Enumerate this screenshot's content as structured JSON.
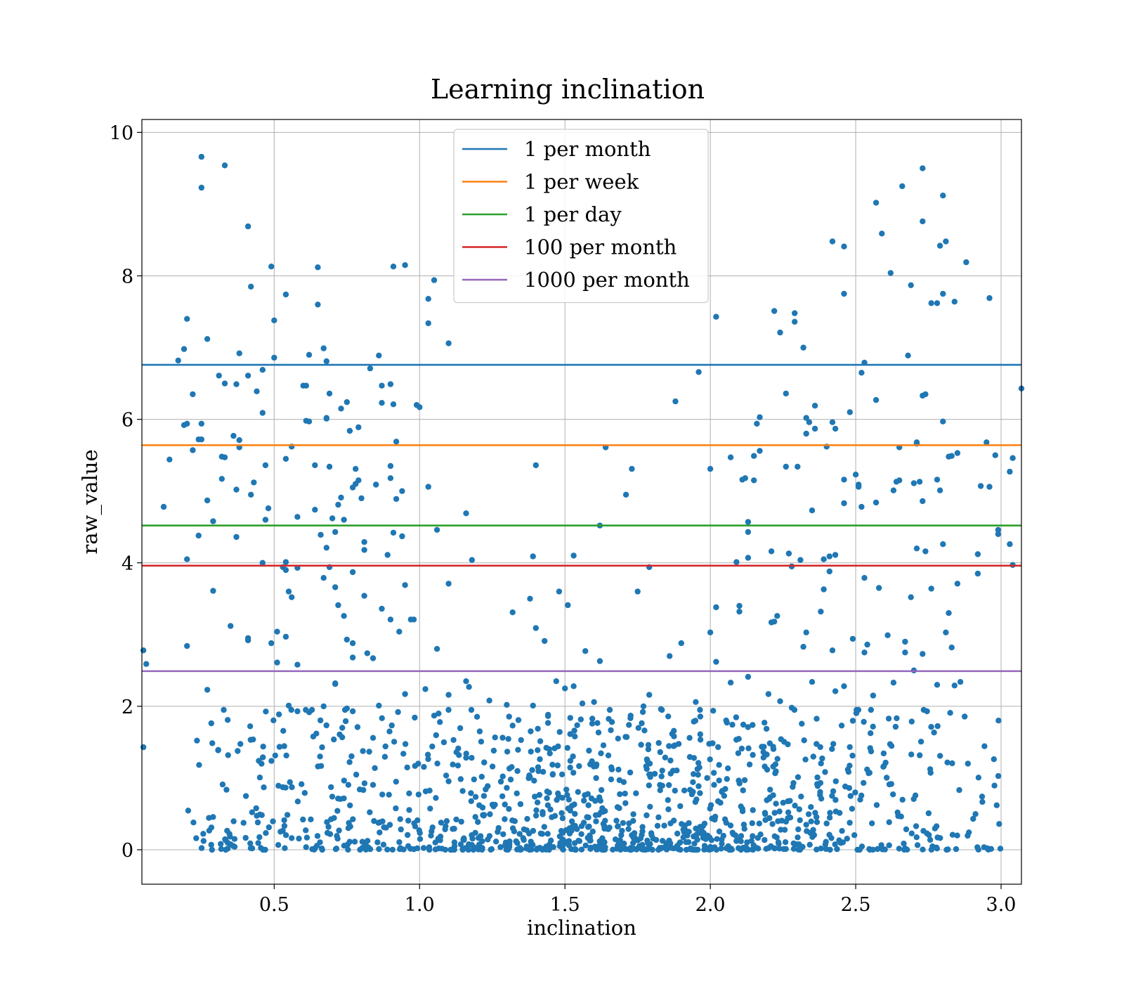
{
  "chart_data": {
    "type": "scatter",
    "title": "Learning inclination",
    "xlabel": "inclination",
    "ylabel": "raw_value",
    "xlim": [
      0.045,
      3.07
    ],
    "ylim": [
      -0.48,
      10.18
    ],
    "xticks": [
      {
        "value": 0.5,
        "label": "0.5"
      },
      {
        "value": 1.0,
        "label": "1.0"
      },
      {
        "value": 1.5,
        "label": "1.5"
      },
      {
        "value": 2.0,
        "label": "2.0"
      },
      {
        "value": 2.5,
        "label": "2.5"
      },
      {
        "value": 3.0,
        "label": "3.0"
      }
    ],
    "yticks": [
      {
        "value": 0,
        "label": "0"
      },
      {
        "value": 2,
        "label": "2"
      },
      {
        "value": 4,
        "label": "4"
      },
      {
        "value": 6,
        "label": "6"
      },
      {
        "value": 8,
        "label": "8"
      },
      {
        "value": 10,
        "label": "10"
      }
    ],
    "grid": true,
    "legend_position": "upper-center",
    "point_color": "#1f77b4",
    "hlines": [
      {
        "name": "1 per month",
        "y": 6.76,
        "color": "#1f77b4"
      },
      {
        "name": "1 per week",
        "y": 5.64,
        "color": "#ff7f0e"
      },
      {
        "name": "1 per day",
        "y": 4.52,
        "color": "#2ca02c"
      },
      {
        "name": "100 per month",
        "y": 3.96,
        "color": "#d62728"
      },
      {
        "name": "1000 per month",
        "y": 2.49,
        "color": "#9467bd"
      }
    ],
    "points": [
      [
        0.05,
        2.78
      ],
      [
        0.06,
        2.59
      ],
      [
        0.05,
        1.43
      ],
      [
        0.12,
        4.78
      ],
      [
        0.14,
        5.44
      ],
      [
        0.17,
        6.82
      ],
      [
        0.2,
        7.4
      ],
      [
        0.19,
        6.98
      ],
      [
        0.19,
        5.92
      ],
      [
        0.2,
        5.94
      ],
      [
        0.22,
        6.35
      ],
      [
        0.22,
        5.57
      ],
      [
        0.24,
        5.72
      ],
      [
        0.25,
        5.94
      ],
      [
        0.25,
        5.72
      ],
      [
        0.25,
        9.66
      ],
      [
        0.25,
        9.23
      ],
      [
        0.27,
        7.12
      ],
      [
        0.27,
        4.87
      ],
      [
        0.24,
        4.38
      ],
      [
        0.2,
        4.05
      ],
      [
        0.2,
        2.84
      ],
      [
        0.27,
        2.23
      ],
      [
        0.29,
        4.58
      ],
      [
        0.29,
        3.61
      ],
      [
        0.31,
        6.61
      ],
      [
        0.32,
        5.48
      ],
      [
        0.33,
        5.47
      ],
      [
        0.33,
        6.5
      ],
      [
        0.32,
        5.17
      ],
      [
        0.33,
        9.54
      ],
      [
        0.36,
        5.77
      ],
      [
        0.37,
        6.49
      ],
      [
        0.38,
        6.92
      ],
      [
        0.38,
        5.71
      ],
      [
        0.38,
        5.61
      ],
      [
        0.37,
        5.02
      ],
      [
        0.37,
        4.36
      ],
      [
        0.35,
        3.12
      ],
      [
        0.34,
        1.81
      ],
      [
        0.41,
        8.69
      ],
      [
        0.42,
        7.85
      ],
      [
        0.41,
        6.61
      ],
      [
        0.44,
        6.39
      ],
      [
        0.46,
        6.69
      ],
      [
        0.46,
        6.09
      ],
      [
        0.43,
        5.12
      ],
      [
        0.42,
        4.95
      ],
      [
        0.47,
        5.36
      ],
      [
        0.47,
        4.6
      ],
      [
        0.48,
        4.76
      ],
      [
        0.49,
        8.13
      ],
      [
        0.5,
        7.38
      ],
      [
        0.5,
        6.86
      ],
      [
        0.46,
        4.0
      ],
      [
        0.41,
        2.95
      ],
      [
        0.41,
        2.92
      ],
      [
        0.49,
        2.88
      ],
      [
        0.51,
        3.04
      ],
      [
        0.51,
        2.61
      ],
      [
        0.54,
        7.74
      ],
      [
        0.54,
        5.45
      ],
      [
        0.56,
        5.62
      ],
      [
        0.53,
        3.94
      ],
      [
        0.54,
        4.01
      ],
      [
        0.54,
        3.9
      ],
      [
        0.55,
        3.6
      ],
      [
        0.56,
        3.52
      ],
      [
        0.54,
        2.97
      ],
      [
        0.58,
        2.58
      ],
      [
        0.58,
        4.64
      ],
      [
        0.58,
        3.93
      ],
      [
        0.6,
        6.47
      ],
      [
        0.61,
        6.47
      ],
      [
        0.61,
        5.98
      ],
      [
        0.62,
        6.9
      ],
      [
        0.62,
        5.97
      ],
      [
        0.64,
        5.36
      ],
      [
        0.64,
        4.74
      ],
      [
        0.65,
        8.12
      ],
      [
        0.65,
        7.6
      ],
      [
        0.67,
        6.99
      ],
      [
        0.68,
        6.81
      ],
      [
        0.68,
        6.02
      ],
      [
        0.68,
        6.01
      ],
      [
        0.69,
        6.36
      ],
      [
        0.69,
        5.34
      ],
      [
        0.66,
        4.39
      ],
      [
        0.68,
        4.21
      ],
      [
        0.67,
        3.79
      ],
      [
        0.69,
        3.94
      ],
      [
        0.7,
        4.62
      ],
      [
        0.71,
        4.43
      ],
      [
        0.71,
        3.66
      ],
      [
        0.72,
        4.81
      ],
      [
        0.73,
        4.91
      ],
      [
        0.74,
        4.6
      ],
      [
        0.72,
        3.41
      ],
      [
        0.74,
        3.26
      ],
      [
        0.75,
        2.93
      ],
      [
        0.73,
        6.15
      ],
      [
        0.75,
        6.24
      ],
      [
        0.76,
        5.84
      ],
      [
        0.77,
        5.05
      ],
      [
        0.78,
        5.31
      ],
      [
        0.79,
        5.89
      ],
      [
        0.79,
        5.15
      ],
      [
        0.78,
        5.1
      ],
      [
        0.8,
        4.9
      ],
      [
        0.77,
        3.87
      ],
      [
        0.77,
        2.68
      ],
      [
        0.77,
        2.88
      ],
      [
        0.81,
        4.29
      ],
      [
        0.81,
        4.18
      ],
      [
        0.81,
        3.54
      ],
      [
        0.82,
        2.74
      ],
      [
        0.84,
        2.67
      ],
      [
        0.71,
        2.31
      ],
      [
        0.83,
        6.71
      ],
      [
        0.85,
        5.09
      ],
      [
        0.86,
        6.89
      ],
      [
        0.87,
        6.47
      ],
      [
        0.87,
        6.23
      ],
      [
        0.87,
        3.36
      ],
      [
        0.89,
        4.11
      ],
      [
        0.9,
        6.49
      ],
      [
        0.91,
        6.21
      ],
      [
        0.9,
        5.35
      ],
      [
        0.9,
        5.18
      ],
      [
        0.92,
        5.69
      ],
      [
        0.91,
        8.13
      ],
      [
        0.95,
        8.15
      ],
      [
        0.92,
        4.89
      ],
      [
        0.94,
        5.0
      ],
      [
        0.91,
        4.42
      ],
      [
        0.94,
        4.37
      ],
      [
        0.9,
        3.21
      ],
      [
        0.93,
        3.04
      ],
      [
        0.95,
        3.69
      ],
      [
        0.97,
        3.21
      ],
      [
        0.98,
        3.21
      ],
      [
        0.99,
        6.2
      ],
      [
        1.0,
        6.17
      ],
      [
        1.03,
        7.68
      ],
      [
        1.03,
        7.34
      ],
      [
        1.05,
        7.94
      ],
      [
        1.03,
        5.06
      ],
      [
        1.06,
        4.46
      ],
      [
        1.1,
        7.06
      ],
      [
        1.1,
        3.71
      ],
      [
        1.06,
        2.8
      ],
      [
        1.16,
        4.69
      ],
      [
        1.18,
        4.04
      ],
      [
        1.32,
        3.31
      ],
      [
        1.38,
        3.5
      ],
      [
        1.39,
        4.09
      ],
      [
        1.4,
        5.36
      ],
      [
        1.4,
        3.09
      ],
      [
        1.43,
        2.91
      ],
      [
        1.48,
        3.6
      ],
      [
        1.53,
        4.1
      ],
      [
        1.51,
        3.41
      ],
      [
        1.57,
        2.77
      ],
      [
        1.62,
        2.63
      ],
      [
        1.62,
        4.52
      ],
      [
        1.64,
        5.61
      ],
      [
        1.71,
        4.95
      ],
      [
        1.73,
        5.31
      ],
      [
        1.75,
        3.6
      ],
      [
        1.79,
        3.94
      ],
      [
        1.88,
        6.25
      ],
      [
        1.86,
        2.7
      ],
      [
        1.9,
        2.88
      ],
      [
        1.96,
        6.66
      ],
      [
        2.0,
        3.03
      ],
      [
        2.0,
        5.31
      ],
      [
        2.02,
        7.43
      ],
      [
        2.02,
        2.62
      ],
      [
        2.02,
        3.38
      ],
      [
        2.07,
        5.47
      ],
      [
        2.09,
        4.01
      ],
      [
        2.11,
        5.16
      ],
      [
        2.12,
        5.18
      ],
      [
        2.13,
        4.57
      ],
      [
        2.13,
        4.43
      ],
      [
        2.13,
        4.07
      ],
      [
        2.1,
        3.4
      ],
      [
        2.1,
        3.32
      ],
      [
        2.15,
        5.15
      ],
      [
        2.15,
        5.49
      ],
      [
        2.16,
        5.94
      ],
      [
        2.17,
        6.03
      ],
      [
        2.17,
        5.56
      ],
      [
        2.21,
        4.16
      ],
      [
        2.21,
        3.17
      ],
      [
        2.22,
        3.18
      ],
      [
        2.23,
        3.26
      ],
      [
        2.22,
        7.51
      ],
      [
        2.24,
        7.21
      ],
      [
        2.26,
        6.36
      ],
      [
        2.26,
        5.34
      ],
      [
        2.27,
        4.13
      ],
      [
        2.28,
        3.95
      ],
      [
        2.29,
        7.48
      ],
      [
        2.29,
        7.36
      ],
      [
        2.3,
        5.34
      ],
      [
        2.31,
        4.04
      ],
      [
        2.32,
        7.0
      ],
      [
        2.33,
        6.02
      ],
      [
        2.33,
        5.8
      ],
      [
        2.34,
        5.96
      ],
      [
        2.35,
        4.73
      ],
      [
        2.36,
        5.87
      ],
      [
        2.36,
        6.19
      ],
      [
        2.32,
        2.83
      ],
      [
        2.33,
        3.03
      ],
      [
        2.38,
        3.32
      ],
      [
        2.39,
        4.05
      ],
      [
        2.39,
        3.63
      ],
      [
        2.4,
        5.62
      ],
      [
        2.41,
        4.09
      ],
      [
        2.41,
        3.88
      ],
      [
        2.42,
        5.96
      ],
      [
        2.42,
        8.48
      ],
      [
        2.43,
        5.87
      ],
      [
        2.43,
        4.11
      ],
      [
        2.46,
        8.41
      ],
      [
        2.46,
        7.75
      ],
      [
        2.46,
        5.16
      ],
      [
        2.46,
        4.83
      ],
      [
        2.42,
        2.78
      ],
      [
        2.48,
        6.1
      ],
      [
        2.49,
        2.94
      ],
      [
        2.5,
        5.23
      ],
      [
        2.51,
        5.06
      ],
      [
        2.51,
        5.09
      ],
      [
        2.52,
        6.65
      ],
      [
        2.52,
        4.78
      ],
      [
        2.53,
        6.79
      ],
      [
        2.53,
        3.79
      ],
      [
        2.53,
        2.75
      ],
      [
        2.54,
        2.86
      ],
      [
        2.57,
        9.02
      ],
      [
        2.57,
        6.27
      ],
      [
        2.57,
        4.84
      ],
      [
        2.58,
        3.65
      ],
      [
        2.59,
        8.59
      ],
      [
        2.61,
        2.99
      ],
      [
        2.62,
        8.04
      ],
      [
        2.63,
        5.01
      ],
      [
        2.64,
        5.13
      ],
      [
        2.65,
        5.61
      ],
      [
        2.65,
        5.15
      ],
      [
        2.66,
        9.25
      ],
      [
        2.67,
        2.9
      ],
      [
        2.67,
        2.75
      ],
      [
        2.68,
        6.89
      ],
      [
        2.69,
        7.87
      ],
      [
        2.69,
        3.52
      ],
      [
        2.7,
        5.11
      ],
      [
        2.71,
        5.66
      ],
      [
        2.71,
        5.68
      ],
      [
        2.71,
        4.2
      ],
      [
        2.72,
        5.13
      ],
      [
        2.73,
        9.5
      ],
      [
        2.73,
        8.76
      ],
      [
        2.73,
        6.33
      ],
      [
        2.74,
        6.35
      ],
      [
        2.73,
        4.86
      ],
      [
        2.74,
        4.16
      ],
      [
        2.73,
        2.73
      ],
      [
        2.76,
        7.62
      ],
      [
        2.76,
        3.64
      ],
      [
        2.78,
        7.62
      ],
      [
        2.78,
        5.16
      ],
      [
        2.79,
        5.01
      ],
      [
        2.8,
        9.12
      ],
      [
        2.79,
        8.42
      ],
      [
        2.8,
        7.75
      ],
      [
        2.8,
        5.97
      ],
      [
        2.81,
        8.48
      ],
      [
        2.8,
        4.26
      ],
      [
        2.81,
        3.03
      ],
      [
        2.82,
        3.3
      ],
      [
        2.82,
        5.48
      ],
      [
        2.83,
        5.49
      ],
      [
        2.84,
        7.64
      ],
      [
        2.85,
        5.53
      ],
      [
        2.85,
        3.71
      ],
      [
        2.83,
        2.82
      ],
      [
        2.88,
        8.19
      ],
      [
        2.92,
        4.12
      ],
      [
        2.92,
        3.85
      ],
      [
        2.93,
        5.07
      ],
      [
        2.95,
        5.68
      ],
      [
        2.96,
        5.06
      ],
      [
        2.96,
        7.69
      ],
      [
        2.98,
        5.5
      ],
      [
        2.99,
        4.46
      ],
      [
        2.99,
        4.4
      ],
      [
        3.03,
        4.26
      ],
      [
        3.03,
        5.27
      ],
      [
        3.04,
        5.46
      ],
      [
        3.04,
        3.97
      ],
      [
        3.07,
        6.43
      ],
      [
        0.55,
        2.01
      ],
      [
        0.58,
        1.93
      ],
      [
        0.63,
        1.95
      ],
      [
        0.67,
        2.0
      ],
      [
        0.71,
        2.32
      ],
      [
        0.75,
        1.97
      ],
      [
        0.77,
        1.93
      ],
      [
        0.84,
        1.56
      ],
      [
        0.86,
        2.01
      ],
      [
        0.95,
        2.17
      ],
      [
        1.02,
        2.24
      ],
      [
        1.05,
        1.87
      ],
      [
        1.07,
        1.78
      ],
      [
        1.1,
        2.16
      ],
      [
        1.16,
        2.35
      ],
      [
        1.17,
        2.27
      ],
      [
        1.24,
        2.08
      ],
      [
        1.3,
        2.02
      ],
      [
        1.39,
        2.01
      ],
      [
        1.47,
        2.35
      ],
      [
        1.5,
        2.25
      ],
      [
        1.53,
        2.28
      ],
      [
        1.56,
        2.04
      ],
      [
        1.6,
        2.06
      ],
      [
        1.72,
        1.74
      ],
      [
        1.77,
        2.0
      ],
      [
        1.79,
        2.16
      ],
      [
        1.83,
        1.96
      ],
      [
        1.95,
        2.06
      ],
      [
        2.07,
        2.33
      ],
      [
        2.13,
        2.41
      ],
      [
        2.2,
        2.17
      ],
      [
        2.24,
        2.07
      ],
      [
        2.28,
        1.98
      ],
      [
        2.35,
        2.34
      ],
      [
        2.43,
        2.21
      ],
      [
        2.46,
        2.28
      ],
      [
        2.56,
        2.15
      ],
      [
        2.63,
        2.33
      ],
      [
        2.7,
        2.5
      ],
      [
        2.78,
        2.3
      ],
      [
        2.84,
        2.29
      ],
      [
        2.86,
        2.34
      ]
    ]
  }
}
